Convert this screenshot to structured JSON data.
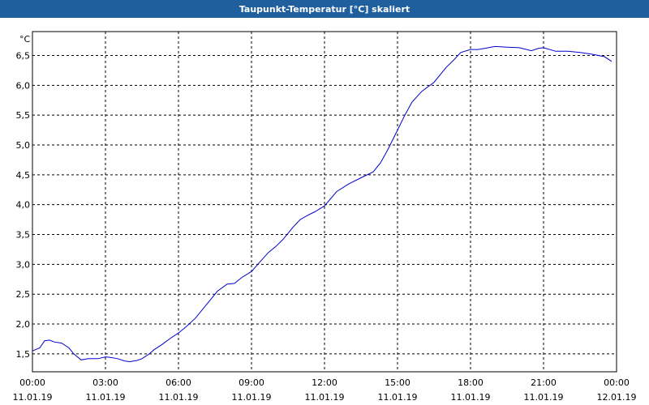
{
  "window": {
    "title": "Taupunkt-Temperatur [°C] skaliert"
  },
  "colors": {
    "titlebar": "#1f5f9e",
    "line": "#0000cc",
    "grid": "#000000"
  },
  "chart_data": {
    "type": "line",
    "title": "Taupunkt-Temperatur [°C] skaliert",
    "y_unit_label": "°C",
    "ylim": [
      1.2,
      6.9
    ],
    "xlim_hours": [
      0,
      24
    ],
    "grid": true,
    "grid_style": "dashed",
    "y_ticks": [
      {
        "value": 1.5,
        "label": "1,5"
      },
      {
        "value": 2.0,
        "label": "2,0"
      },
      {
        "value": 2.5,
        "label": "2,5"
      },
      {
        "value": 3.0,
        "label": "3,0"
      },
      {
        "value": 3.5,
        "label": "3,5"
      },
      {
        "value": 4.0,
        "label": "4,0"
      },
      {
        "value": 4.5,
        "label": "4,5"
      },
      {
        "value": 5.0,
        "label": "5,0"
      },
      {
        "value": 5.5,
        "label": "5,5"
      },
      {
        "value": 6.0,
        "label": "6,0"
      },
      {
        "value": 6.5,
        "label": "6,5"
      }
    ],
    "x_ticks": [
      {
        "hour": 0,
        "time": "00:00",
        "date": "11.01.19"
      },
      {
        "hour": 3,
        "time": "03:00",
        "date": "11.01.19"
      },
      {
        "hour": 6,
        "time": "06:00",
        "date": "11.01.19"
      },
      {
        "hour": 9,
        "time": "09:00",
        "date": "11.01.19"
      },
      {
        "hour": 12,
        "time": "12:00",
        "date": "11.01.19"
      },
      {
        "hour": 15,
        "time": "15:00",
        "date": "11.01.19"
      },
      {
        "hour": 18,
        "time": "18:00",
        "date": "11.01.19"
      },
      {
        "hour": 21,
        "time": "21:00",
        "date": "11.01.19"
      },
      {
        "hour": 24,
        "time": "00:00",
        "date": "12.01.19"
      }
    ],
    "series": [
      {
        "x_hours": [
          0,
          0.3,
          0.5,
          0.7,
          0.9,
          1.2,
          1.5,
          1.7,
          2.0,
          2.3,
          2.7,
          3.0,
          3.2,
          3.5,
          3.8,
          4.0,
          4.3,
          4.5,
          4.8,
          5.0,
          5.3,
          5.7,
          6.0,
          6.3,
          6.7,
          7.0,
          7.3,
          7.6,
          8.0,
          8.3,
          8.6,
          9.0,
          9.3,
          9.7,
          10.0,
          10.3,
          10.7,
          11.0,
          11.3,
          11.6,
          12.0,
          12.5,
          13.0,
          13.5,
          14.0,
          14.3,
          14.6,
          15.0,
          15.3,
          15.6,
          16.0,
          16.5,
          17.0,
          17.3,
          17.6,
          18.0,
          18.3,
          18.6,
          19.0,
          19.5,
          20.0,
          20.5,
          20.8,
          21.0,
          21.5,
          22.0,
          22.5,
          23.0,
          23.5,
          23.8
        ],
        "values": [
          1.55,
          1.6,
          1.72,
          1.73,
          1.7,
          1.68,
          1.6,
          1.5,
          1.4,
          1.42,
          1.42,
          1.45,
          1.44,
          1.42,
          1.38,
          1.37,
          1.39,
          1.42,
          1.5,
          1.57,
          1.65,
          1.77,
          1.85,
          1.95,
          2.1,
          2.25,
          2.4,
          2.55,
          2.67,
          2.68,
          2.78,
          2.88,
          3.02,
          3.2,
          3.3,
          3.42,
          3.62,
          3.75,
          3.82,
          3.88,
          3.98,
          4.22,
          4.35,
          4.45,
          4.55,
          4.7,
          4.92,
          5.25,
          5.5,
          5.72,
          5.9,
          6.05,
          6.3,
          6.42,
          6.55,
          6.6,
          6.6,
          6.62,
          6.65,
          6.64,
          6.63,
          6.58,
          6.62,
          6.63,
          6.57,
          6.57,
          6.55,
          6.52,
          6.48,
          6.4
        ]
      }
    ]
  }
}
